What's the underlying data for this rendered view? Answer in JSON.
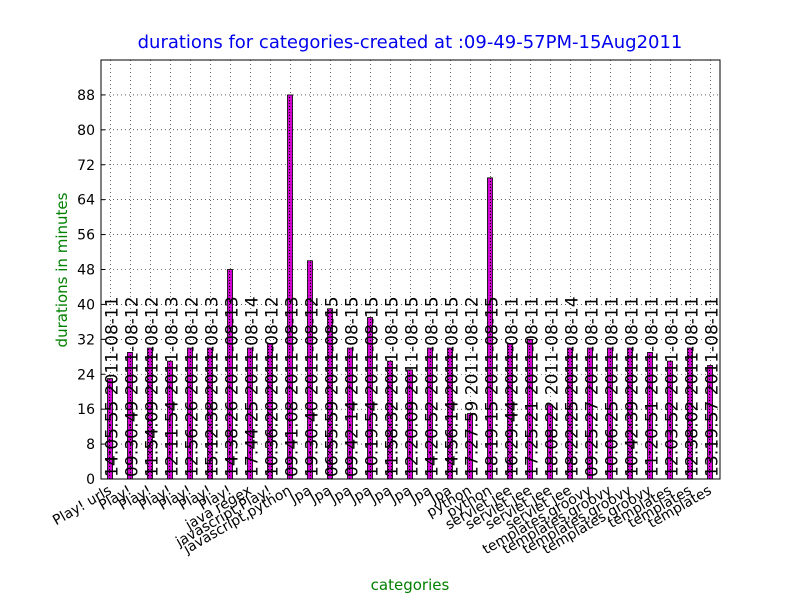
{
  "chart_data": {
    "type": "bar",
    "title": "durations for categories-created at :09-49-57PM-15Aug2011",
    "x_label": "categories",
    "y_label": "durations in  minutes",
    "categories": [
      "Play! urls",
      "Play!",
      "Play!",
      "Play!",
      "Play!",
      "Play!",
      "Play!",
      "java regex",
      "javascript,Play!",
      "javascript,python",
      "Jpa",
      "Jpa",
      "Jpa",
      "Jpa",
      "Jpa",
      "Jpa",
      "Jpa",
      "Jpa",
      "python",
      "python",
      "servlet jee",
      "servlet jee",
      "servlet jee",
      "servlet jee",
      "templates,groovy",
      "templates,groovy",
      "templates,groovy",
      "templates,groovy",
      "templates",
      "templates",
      "templates"
    ],
    "values": [
      23,
      29,
      30,
      27,
      30,
      30,
      48,
      30,
      31,
      88,
      50,
      39,
      30,
      37,
      27,
      25,
      30,
      30,
      15,
      69,
      31,
      32,
      17,
      30,
      30,
      30,
      30,
      29,
      27,
      30,
      26
    ],
    "bar_labels": [
      "14:05:55 2011-08-11",
      "09:30:49 2011-08-12",
      "11:54:09 2011-08-12",
      "12:11:54 2011-08-13",
      "12:56:26 2011-08-12",
      "15:12:38 2011-08-13",
      "14:38:26 2011-08-13",
      "17:44:25 2011-08-14",
      "10:36:20 2011-08-12",
      "09:41:08 2011-08-13",
      "19:30:40 2011-08-12",
      "06:55:59 2011-08-15",
      "09:42:14 2011-08-15",
      "10:19:54 2011-08-15",
      "11:58:32 2011-08-15",
      "12:20:09 2011-08-15",
      "14:20:52 2011-08-15",
      "14:56:14 2011-08-15",
      "17:27:59 2011-08-12",
      "18:19:15 2011-08-15",
      "16:29:44 2011-08-11",
      "17:25:21 2011-08-11",
      "18:08:22 2011-08-11",
      "18:22:25 2011-08-14",
      "09:25:27 2011-08-11",
      "10:06:25 2011-08-11",
      "10:42:39 2011-08-11",
      "11:20:51 2011-08-11",
      "12:03:52 2011-08-11",
      "12:38:02 2011-08-11",
      "13:19:57 2011-08-11"
    ],
    "color": "#d400d4",
    "ylim": [
      0,
      96
    ],
    "yticks": [
      0,
      8,
      16,
      24,
      32,
      40,
      48,
      56,
      64,
      72,
      80,
      88
    ],
    "grid": true
  }
}
